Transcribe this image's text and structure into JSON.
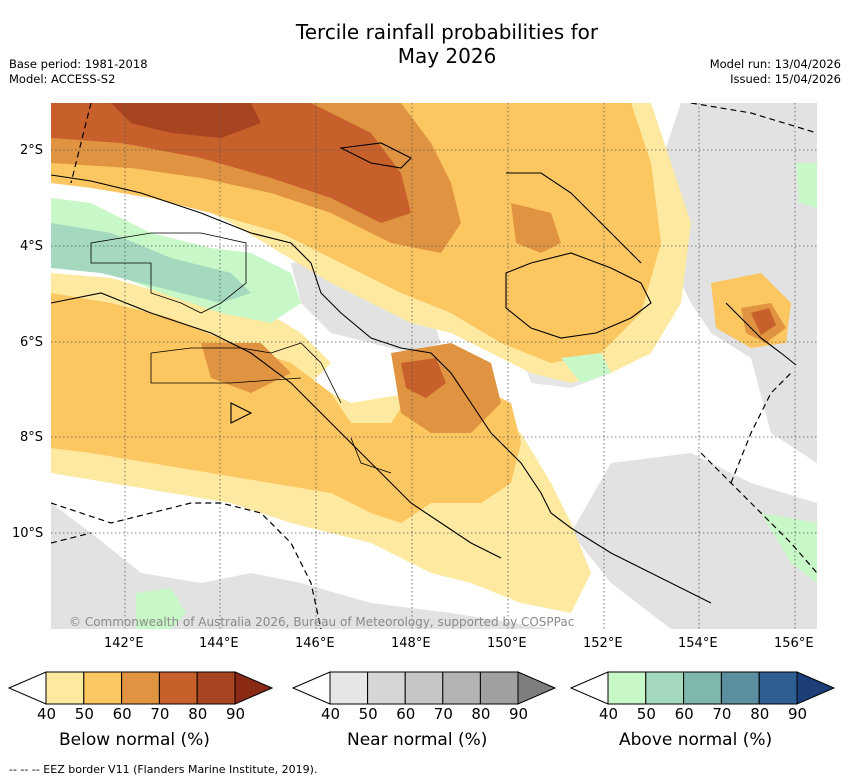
{
  "title": {
    "line1": "Tercile rainfall probabilities for",
    "line2": "May 2026"
  },
  "meta": {
    "base_period": "Base period: 1981-2018",
    "model": "Model: ACCESS-S2",
    "model_run": "Model run: 13/04/2026",
    "issued": "Issued: 15/04/2026"
  },
  "map": {
    "lat_labels": [
      "2°S",
      "4°S",
      "6°S",
      "8°S",
      "10°S"
    ],
    "lon_labels": [
      "142°E",
      "144°E",
      "146°E",
      "148°E",
      "150°E",
      "152°E",
      "154°E",
      "156°E"
    ],
    "copyright": "© Commonwealth of Australia 2026, Bureau of Meteorology, supported by COSPPac"
  },
  "colorbars": [
    {
      "label": "Below normal (%)",
      "ticks": [
        "40",
        "50",
        "60",
        "70",
        "80",
        "90"
      ],
      "colors": [
        "#ffffff",
        "#fde9a0",
        "#fcc660",
        "#e09442",
        "#c8602c",
        "#a8441f",
        "#8a2a14"
      ]
    },
    {
      "label": "Near normal (%)",
      "ticks": [
        "40",
        "50",
        "60",
        "70",
        "80",
        "90"
      ],
      "colors": [
        "#ffffff",
        "#e6e6e6",
        "#d6d6d6",
        "#c6c6c6",
        "#b4b4b4",
        "#a0a0a0",
        "#7e7e7e"
      ]
    },
    {
      "label": "Above normal (%)",
      "ticks": [
        "40",
        "50",
        "60",
        "70",
        "80",
        "90"
      ],
      "colors": [
        "#ffffff",
        "#c8f7c8",
        "#a4d9bf",
        "#7fb6ae",
        "#5b8f9f",
        "#2f5e93",
        "#1c3f7a"
      ]
    }
  ],
  "colors": {
    "below": "#fcc660",
    "near": "#e2e2e2",
    "above": "#c8f7c8"
  },
  "footnote": "--  --  -- EEZ border V11 (Flanders Marine Institute, 2019)."
}
